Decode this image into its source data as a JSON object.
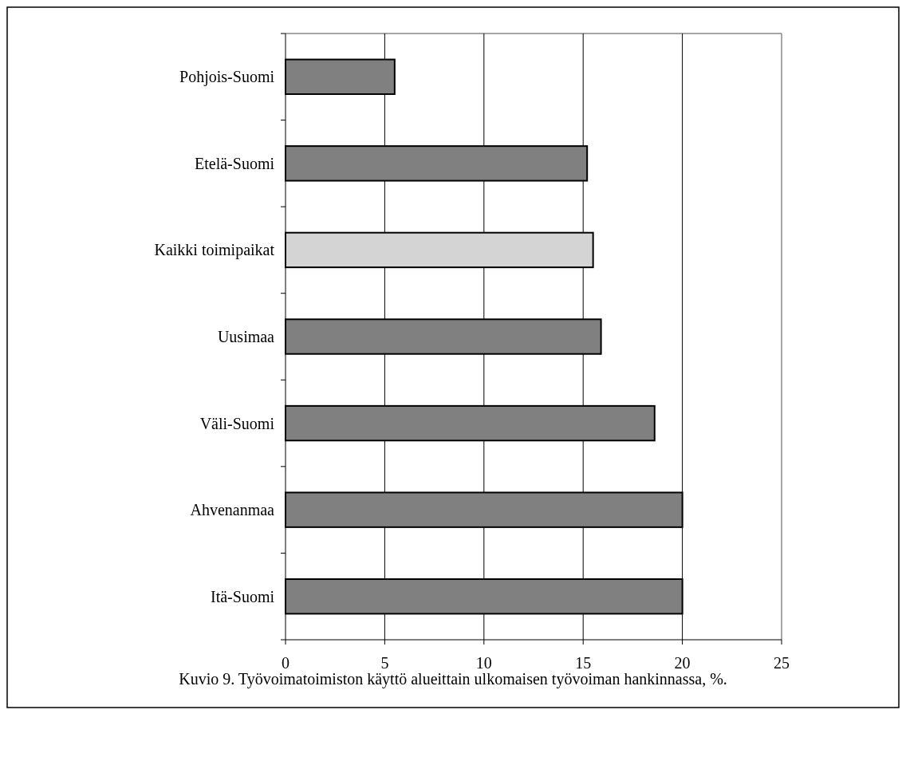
{
  "chart_data": {
    "type": "bar",
    "orientation": "horizontal",
    "categories": [
      "Pohjois-Suomi",
      "Etelä-Suomi",
      "Kaikki toimipaikat",
      "Uusimaa",
      "Väli-Suomi",
      "Ahvenanmaa",
      "Itä-Suomi"
    ],
    "values": [
      5.5,
      15.2,
      15.5,
      15.9,
      18.6,
      20,
      20
    ],
    "colors": [
      "#808080",
      "#808080",
      "#d4d4d4",
      "#808080",
      "#808080",
      "#808080",
      "#808080"
    ],
    "xlim": [
      0,
      25
    ],
    "xticks": [
      0,
      5,
      10,
      15,
      20,
      25
    ],
    "grid": "x",
    "annotations": [
      "Kuvio 9. Työvoimatoimiston käyttö alueittain ulkomaisen työvoiman hankinnassa, %."
    ]
  }
}
